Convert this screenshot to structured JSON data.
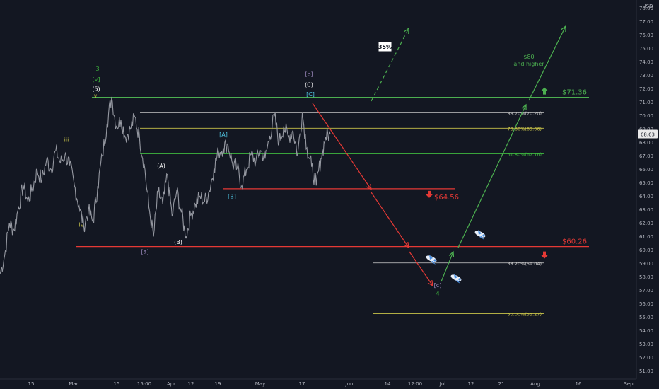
{
  "chart_data": {
    "type": "line",
    "currency": "USD",
    "ylim": [
      50.4,
      78.6
    ],
    "y_ticks": [
      51,
      52,
      53,
      54,
      55,
      56,
      57,
      58,
      59,
      60,
      61,
      62,
      63,
      64,
      65,
      66,
      67,
      68,
      69,
      70,
      71,
      72,
      73,
      74,
      75,
      76,
      77,
      78
    ],
    "x_ticks": [
      "15",
      "Mar",
      "15",
      "15:00",
      "Apr",
      "12",
      "19",
      "May",
      "17",
      "Jun",
      "14",
      "12:00",
      "Jul",
      "12",
      "21",
      "Aug",
      "16",
      "Sep"
    ],
    "current_price": "68.63",
    "price_series": {
      "name": "",
      "start": 58.2,
      "points": [
        [
          58.2,
          59.6,
          62.0,
          61.5,
          63.2,
          64.8,
          63.6,
          64.6,
          65.9,
          65.2,
          66.7,
          66.0,
          67.4,
          66.5,
          67.1
        ],
        [
          66.3,
          64.8,
          63.3,
          61.8,
          62.9,
          62.1,
          64.7,
          67.0,
          69.4,
          71.4,
          69.2,
          69.7,
          68.4,
          69.0,
          69.9,
          68.4,
          66.4
        ],
        [
          63.2,
          61.0,
          64.3,
          63.4,
          65.6,
          62.5,
          64.4,
          62.8,
          61.0,
          62.6,
          63.4,
          64.0,
          63.6,
          64.4,
          66.1,
          67.3,
          67.6,
          67.9,
          66.4,
          66.1,
          64.8,
          66.0,
          67.1,
          66.6,
          67.4,
          66.8,
          68.5,
          70.0,
          68.0,
          69.2,
          68.4,
          68.9,
          67.1,
          70.2,
          67.6,
          66.2,
          64.8,
          66.8,
          68.4,
          68.63
        ]
      ]
    },
    "horizontal_levels": [
      {
        "price": 71.36,
        "label": "$71.36",
        "color": "#4caf50"
      },
      {
        "price": 70.2,
        "label": "88.70%(70.20)",
        "color": "#c7c7c7"
      },
      {
        "price": 69.06,
        "label": "78.60%(69.06)",
        "color": "#c9c44a"
      },
      {
        "price": 67.16,
        "label": "61.80%(67.16)",
        "color": "#3fb83f"
      },
      {
        "price": 64.56,
        "label": "$64.56",
        "color": "#e53935"
      },
      {
        "price": 60.26,
        "label": "$60.26",
        "color": "#e53935"
      },
      {
        "price": 59.04,
        "label": "38.20%(59.04)",
        "color": "#d0d0d0"
      },
      {
        "price": 55.27,
        "label": "50.00%(55.27)",
        "color": "#c9c44a"
      }
    ],
    "annotations": {
      "target_label": "$80\nand higher",
      "percent_badge": "35%",
      "wave_labels": [
        {
          "text": "3",
          "price": 73.5,
          "color": "#3fb83f"
        },
        {
          "text": "[v]",
          "price": 72.7,
          "color": "#3fb83f"
        },
        {
          "text": "(5)",
          "price": 72.0,
          "color": "#ffffff"
        },
        {
          "text": "v",
          "price": 71.5,
          "color": "#c9c44a"
        },
        {
          "text": "iii",
          "price": 68.2,
          "color": "#c9c44a"
        },
        {
          "text": "iv",
          "price": 61.9,
          "color": "#c9c44a"
        },
        {
          "text": "[a]",
          "price": 59.9,
          "color": "#9e8bbf"
        },
        {
          "text": "(A)",
          "price": 66.3,
          "color": "#ffffff"
        },
        {
          "text": "(B)",
          "price": 60.6,
          "color": "#ffffff"
        },
        {
          "text": "[A]",
          "price": 68.6,
          "color": "#4fc3e0"
        },
        {
          "text": "[B]",
          "price": 64.0,
          "color": "#4fc3e0"
        },
        {
          "text": "[b]",
          "price": 73.1,
          "color": "#9e8bbf"
        },
        {
          "text": "(C)",
          "price": 72.3,
          "color": "#ffffff"
        },
        {
          "text": "[C]",
          "price": 71.6,
          "color": "#4fc3e0"
        },
        {
          "text": "[c]",
          "price": 57.4,
          "color": "#9e8bbf"
        },
        {
          "text": "4",
          "price": 56.8,
          "color": "#3fb83f"
        }
      ]
    }
  }
}
